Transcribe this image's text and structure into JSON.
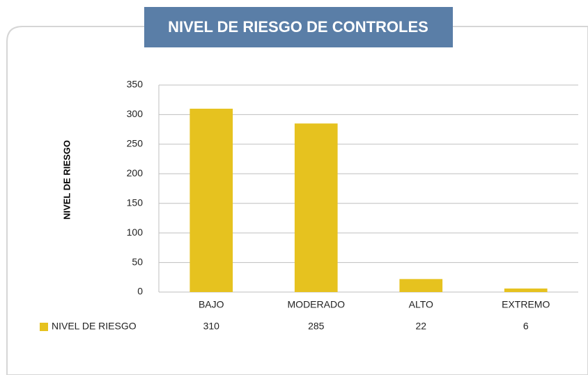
{
  "chart_data": {
    "type": "bar",
    "title": "NIVEL DE RIESGO DE CONTROLES",
    "y_label": "NIVEL DE RIESGO",
    "categories": [
      "BAJO",
      "MODERADO",
      "ALTO",
      "EXTREMO"
    ],
    "series": [
      {
        "name": "NIVEL DE RIESGO",
        "color": "#e6c21f",
        "values": [
          310,
          285,
          22,
          6
        ]
      }
    ],
    "ylim": [
      0,
      350
    ],
    "yticks": [
      0,
      50,
      100,
      150,
      200,
      250,
      300,
      350
    ],
    "grid": true,
    "data_table": true
  }
}
